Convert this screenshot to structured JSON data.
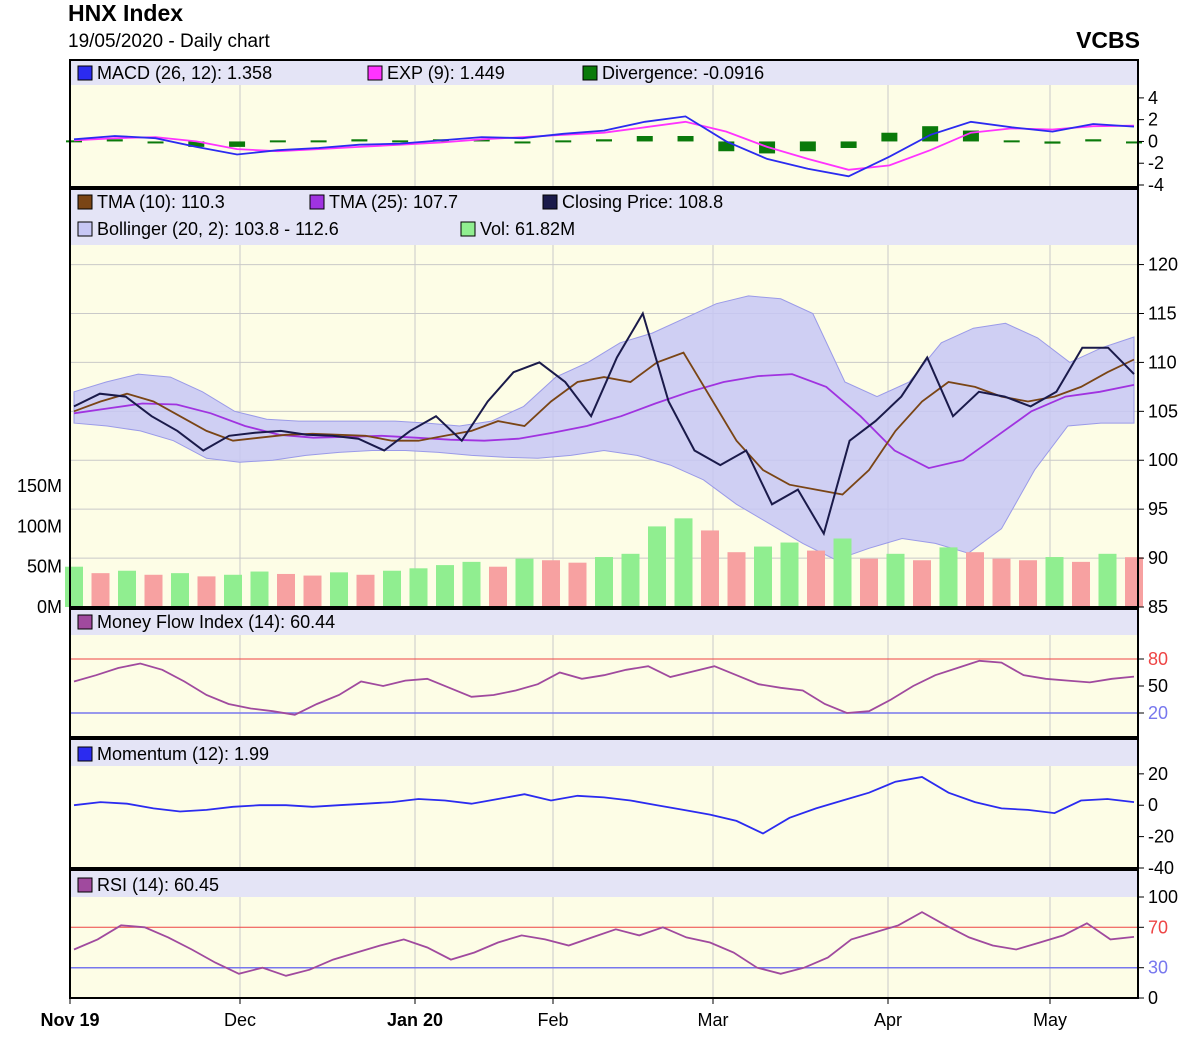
{
  "header": {
    "title": "HNX Index",
    "subtitle": "19/05/2020 - Daily chart",
    "brand": "VCBS"
  },
  "colors": {
    "panel_bg": "#fdfde6",
    "legend_bg": "#e4e4f6",
    "grid": "#c9c9c9",
    "macd": "#2b2bf0",
    "exp": "#ff33ff",
    "divergence": "#0a7a0a",
    "tma10": "#7a4515",
    "tma25": "#a033e0",
    "close": "#1a1a4a",
    "bollinger_fill": "#c7c7f5",
    "bollinger_edge": "#9a9ae8",
    "vol_up": "#90ee90",
    "vol_down": "#f7a1a1",
    "mfi": "#a04a9e",
    "momentum": "#2b2bf0",
    "rsi": "#a04a9e",
    "overbought": "#ee4444",
    "oversold": "#7777ee"
  },
  "x_axis": {
    "labels": [
      "Nov 19",
      "Dec",
      "Jan 20",
      "Feb",
      "Mar",
      "Apr",
      "May"
    ],
    "bold": [
      true,
      false,
      true,
      false,
      false,
      false,
      false
    ]
  },
  "chart_data": [
    {
      "type": "line",
      "panel": "macd",
      "ylim": [
        -4,
        5
      ],
      "y_ticks": [
        "4",
        "2",
        "0",
        "-2",
        "-4"
      ],
      "legend": [
        {
          "label": "MACD (26, 12): 1.358",
          "color_key": "macd",
          "icon": "blue-square-icon"
        },
        {
          "label": "EXP (9): 1.449",
          "color_key": "exp",
          "icon": "magenta-square-icon"
        },
        {
          "label": "Divergence: -0.0916",
          "color_key": "divergence",
          "icon": "green-square-icon"
        }
      ],
      "series": [
        {
          "name": "MACD (26, 12)",
          "color_key": "macd",
          "values": [
            0.2,
            0.5,
            0.3,
            -0.5,
            -1.2,
            -0.8,
            -0.6,
            -0.3,
            -0.2,
            0.1,
            0.4,
            0.3,
            0.7,
            1.0,
            1.8,
            2.3,
            0.0,
            -1.6,
            -2.5,
            -3.2,
            -1.4,
            0.6,
            1.8,
            1.3,
            0.9,
            1.6,
            1.36
          ]
        },
        {
          "name": "EXP (9)",
          "color_key": "exp",
          "values": [
            0.1,
            0.3,
            0.4,
            0.0,
            -0.7,
            -0.9,
            -0.7,
            -0.5,
            -0.3,
            -0.1,
            0.2,
            0.4,
            0.6,
            0.8,
            1.3,
            1.8,
            0.9,
            -0.5,
            -1.6,
            -2.6,
            -2.2,
            -0.8,
            0.8,
            1.2,
            1.1,
            1.4,
            1.45
          ]
        },
        {
          "name": "Divergence",
          "color_key": "divergence",
          "style": "bars",
          "values": [
            0.1,
            0.2,
            -0.1,
            -0.5,
            -0.5,
            0.1,
            0.1,
            0.2,
            0.1,
            0.2,
            0.2,
            -0.1,
            0.1,
            0.2,
            0.5,
            0.5,
            -0.9,
            -1.1,
            -0.9,
            -0.6,
            0.8,
            1.4,
            1.0,
            0.1,
            -0.2,
            0.2,
            -0.09
          ]
        }
      ]
    },
    {
      "type": "line",
      "panel": "price",
      "ylim": [
        85,
        122
      ],
      "y_ticks": [
        "120",
        "115",
        "110",
        "105",
        "100",
        "95",
        "90",
        "85"
      ],
      "legend": [
        {
          "label": "TMA (10): 110.3",
          "color_key": "tma10",
          "icon": "brown-square-icon"
        },
        {
          "label": "TMA (25): 107.7",
          "color_key": "tma25",
          "icon": "purple-square-icon"
        },
        {
          "label": "Closing Price: 108.8",
          "color_key": "close",
          "icon": "navy-square-icon"
        },
        {
          "label": "Bollinger (20, 2): 103.8 - 112.6",
          "color_key": "bollinger_fill",
          "icon": "lavender-square-icon"
        },
        {
          "label": "Vol: 61.82M",
          "color_key": "vol_up",
          "icon": "lightgreen-square-icon"
        }
      ],
      "series": [
        {
          "name": "Closing Price",
          "color_key": "close",
          "values": [
            105.5,
            106.8,
            106.5,
            104.5,
            103.0,
            101.0,
            102.5,
            102.8,
            103.0,
            102.6,
            102.5,
            102.2,
            101.0,
            103.0,
            104.5,
            102.0,
            106.0,
            109.0,
            110.0,
            108.0,
            104.5,
            110.5,
            115.0,
            106.0,
            101.0,
            99.5,
            101.0,
            95.5,
            97.0,
            92.5,
            102.0,
            104.0,
            106.5,
            110.5,
            104.5,
            107.0,
            106.5,
            105.5,
            107.0,
            111.5,
            111.5,
            108.8
          ]
        },
        {
          "name": "TMA (10)",
          "color_key": "tma10",
          "values": [
            105.0,
            106.0,
            106.8,
            106.0,
            104.5,
            103.0,
            102.0,
            102.3,
            102.6,
            102.7,
            102.6,
            102.5,
            102.0,
            102.0,
            102.5,
            103.0,
            104.0,
            103.5,
            106.0,
            108.0,
            108.5,
            108.0,
            110.0,
            111.0,
            106.5,
            102.0,
            99.0,
            97.5,
            97.0,
            96.5,
            99.0,
            103.0,
            106.0,
            108.0,
            107.5,
            106.5,
            106.0,
            106.5,
            107.5,
            109.0,
            110.3
          ]
        },
        {
          "name": "TMA (25)",
          "color_key": "tma25",
          "values": [
            104.8,
            105.3,
            105.8,
            105.7,
            104.8,
            103.5,
            102.6,
            102.3,
            102.4,
            102.5,
            102.3,
            102.1,
            102.0,
            102.2,
            102.8,
            103.5,
            104.5,
            105.8,
            107.0,
            108.0,
            108.6,
            108.8,
            107.5,
            104.5,
            101.0,
            99.2,
            100.0,
            102.5,
            105.0,
            106.5,
            107.0,
            107.7
          ]
        },
        {
          "name": "Bollinger Upper",
          "color_key": "bollinger_edge",
          "values": [
            107.0,
            108.0,
            108.8,
            108.5,
            107.0,
            105.0,
            104.2,
            104.0,
            104.0,
            104.0,
            104.0,
            103.8,
            103.5,
            104.0,
            105.5,
            108.5,
            110.0,
            112.0,
            113.0,
            114.5,
            116.0,
            116.8,
            116.5,
            115.0,
            108.0,
            106.5,
            108.0,
            112.0,
            113.5,
            114.0,
            112.5,
            110.0,
            111.5,
            112.6
          ]
        },
        {
          "name": "Bollinger Lower",
          "color_key": "bollinger_edge",
          "values": [
            103.8,
            103.5,
            103.0,
            102.0,
            100.2,
            99.8,
            100.0,
            100.5,
            100.8,
            101.0,
            101.0,
            100.8,
            100.5,
            100.3,
            100.2,
            100.5,
            101.0,
            100.5,
            99.5,
            98.0,
            95.5,
            93.5,
            91.5,
            89.8,
            91.0,
            92.0,
            91.5,
            90.5,
            93.0,
            99.0,
            103.5,
            103.8,
            103.8
          ]
        },
        {
          "name": "Vol",
          "color_key": "vol_up",
          "style": "bars",
          "values": [
            50,
            42,
            45,
            40,
            42,
            38,
            40,
            44,
            41,
            39,
            43,
            40,
            45,
            48,
            52,
            56,
            50,
            60,
            58,
            55,
            62,
            66,
            100,
            110,
            95,
            68,
            75,
            80,
            70,
            85,
            60,
            66,
            58,
            74,
            68,
            60,
            58,
            62,
            56,
            66,
            61.82
          ]
        }
      ]
    },
    {
      "type": "line",
      "panel": "volume",
      "ylim": [
        0,
        170
      ],
      "y_ticks": [
        "150M",
        "100M",
        "50M",
        "0M"
      ]
    },
    {
      "type": "area",
      "panel": "mfi",
      "ylim": [
        0,
        100
      ],
      "y_ticks": [
        "80",
        "50",
        "20"
      ],
      "legend": [
        {
          "label": "Money Flow Index (14): 60.44",
          "color_key": "mfi",
          "icon": "purple-square-icon"
        }
      ],
      "series": [
        {
          "name": "Money Flow Index (14)",
          "color_key": "mfi",
          "values": [
            55,
            62,
            70,
            75,
            68,
            55,
            40,
            30,
            25,
            22,
            18,
            30,
            40,
            55,
            50,
            56,
            58,
            48,
            38,
            40,
            45,
            52,
            65,
            58,
            62,
            68,
            72,
            60,
            66,
            72,
            62,
            52,
            48,
            45,
            30,
            20,
            22,
            35,
            50,
            62,
            70,
            78,
            76,
            62,
            58,
            56,
            54,
            58,
            60.44
          ]
        }
      ]
    },
    {
      "type": "line",
      "panel": "momentum",
      "ylim": [
        -40,
        25
      ],
      "y_ticks": [
        "20",
        "0",
        "-20",
        "-40"
      ],
      "legend": [
        {
          "label": "Momentum (12): 1.99",
          "color_key": "momentum",
          "icon": "blue-square-icon"
        }
      ],
      "series": [
        {
          "name": "Momentum (12)",
          "color_key": "momentum",
          "values": [
            0,
            2,
            1,
            -2,
            -4,
            -3,
            -1,
            0,
            0,
            -1,
            0,
            1,
            2,
            4,
            3,
            1,
            4,
            7,
            3,
            6,
            5,
            3,
            0,
            -3,
            -6,
            -10,
            -18,
            -8,
            -2,
            3,
            8,
            15,
            18,
            8,
            2,
            -2,
            -3,
            -5,
            3,
            4,
            1.99
          ]
        }
      ]
    },
    {
      "type": "area",
      "panel": "rsi",
      "ylim": [
        0,
        100
      ],
      "y_ticks": [
        "100",
        "70",
        "30",
        "0"
      ],
      "legend": [
        {
          "label": "RSI (14): 60.45",
          "color_key": "rsi",
          "icon": "purple-square-icon"
        }
      ],
      "series": [
        {
          "name": "RSI (14)",
          "color_key": "rsi",
          "values": [
            48,
            58,
            72,
            70,
            60,
            48,
            35,
            24,
            30,
            22,
            28,
            38,
            45,
            52,
            58,
            50,
            38,
            45,
            55,
            62,
            58,
            52,
            60,
            68,
            62,
            70,
            60,
            55,
            45,
            30,
            24,
            30,
            40,
            58,
            65,
            72,
            85,
            72,
            60,
            52,
            48,
            55,
            62,
            74,
            58,
            60.45
          ]
        }
      ]
    }
  ]
}
